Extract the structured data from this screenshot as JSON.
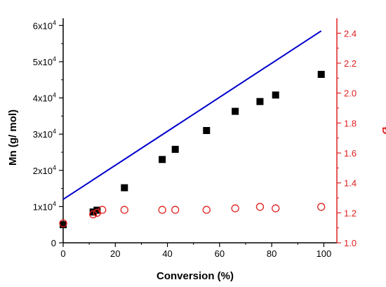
{
  "chart_data": {
    "type": "scatter",
    "x_axis": {
      "label": "Conversion (%)",
      "range": [
        0,
        105
      ],
      "ticks": [
        0,
        20,
        40,
        60,
        80,
        100
      ],
      "tick_labels": [
        "0",
        "20",
        "40",
        "60",
        "80",
        "100"
      ]
    },
    "y_axis_left": {
      "label": "Mn (g/ mol)",
      "range": [
        0,
        62000
      ],
      "ticks": [
        0,
        10000,
        20000,
        30000,
        40000,
        50000,
        60000
      ],
      "tick_labels": [
        "0",
        "1x10",
        "2x10",
        "3x10",
        "4x10",
        "5x10",
        "6x10"
      ],
      "tick_exponent": "4"
    },
    "y_axis_right": {
      "label": "Đ",
      "range": [
        1.0,
        2.5
      ],
      "ticks": [
        1.0,
        1.2,
        1.4,
        1.6,
        1.8,
        2.0,
        2.2,
        2.4
      ],
      "tick_labels": [
        "1.0",
        "1.2",
        "1.4",
        "1.6",
        "1.8",
        "2.0",
        "2.2",
        "2.4"
      ]
    },
    "series": [
      {
        "marker": "filled-square",
        "axis": "left",
        "color": "#000000",
        "points": [
          {
            "x": 0,
            "y": 5000
          },
          {
            "x": 11.5,
            "y": 8500
          },
          {
            "x": 13,
            "y": 9000
          },
          {
            "x": 23.5,
            "y": 15200
          },
          {
            "x": 38,
            "y": 23000
          },
          {
            "x": 43,
            "y": 25800
          },
          {
            "x": 55,
            "y": 31000
          },
          {
            "x": 66,
            "y": 36300
          },
          {
            "x": 75.5,
            "y": 39000
          },
          {
            "x": 81.5,
            "y": 40800
          },
          {
            "x": 99,
            "y": 46500
          }
        ]
      },
      {
        "marker": "line",
        "axis": "left",
        "color": "#0000cc",
        "points": [
          {
            "x": 0,
            "y": 12000
          },
          {
            "x": 99,
            "y": 58500
          }
        ]
      },
      {
        "marker": "open-circle",
        "axis": "right",
        "color": "#e02020",
        "points": [
          {
            "x": 0,
            "y": 1.13
          },
          {
            "x": 11.5,
            "y": 1.19
          },
          {
            "x": 13,
            "y": 1.2
          },
          {
            "x": 15,
            "y": 1.22
          },
          {
            "x": 23.5,
            "y": 1.22
          },
          {
            "x": 38,
            "y": 1.22
          },
          {
            "x": 43,
            "y": 1.22
          },
          {
            "x": 55,
            "y": 1.22
          },
          {
            "x": 66,
            "y": 1.23
          },
          {
            "x": 75.5,
            "y": 1.24
          },
          {
            "x": 81.5,
            "y": 1.23
          },
          {
            "x": 99,
            "y": 1.24
          }
        ]
      }
    ],
    "grid": false,
    "legend": "none",
    "colors": {
      "left_axis": "#000000",
      "right_axis": "#e02020"
    }
  }
}
